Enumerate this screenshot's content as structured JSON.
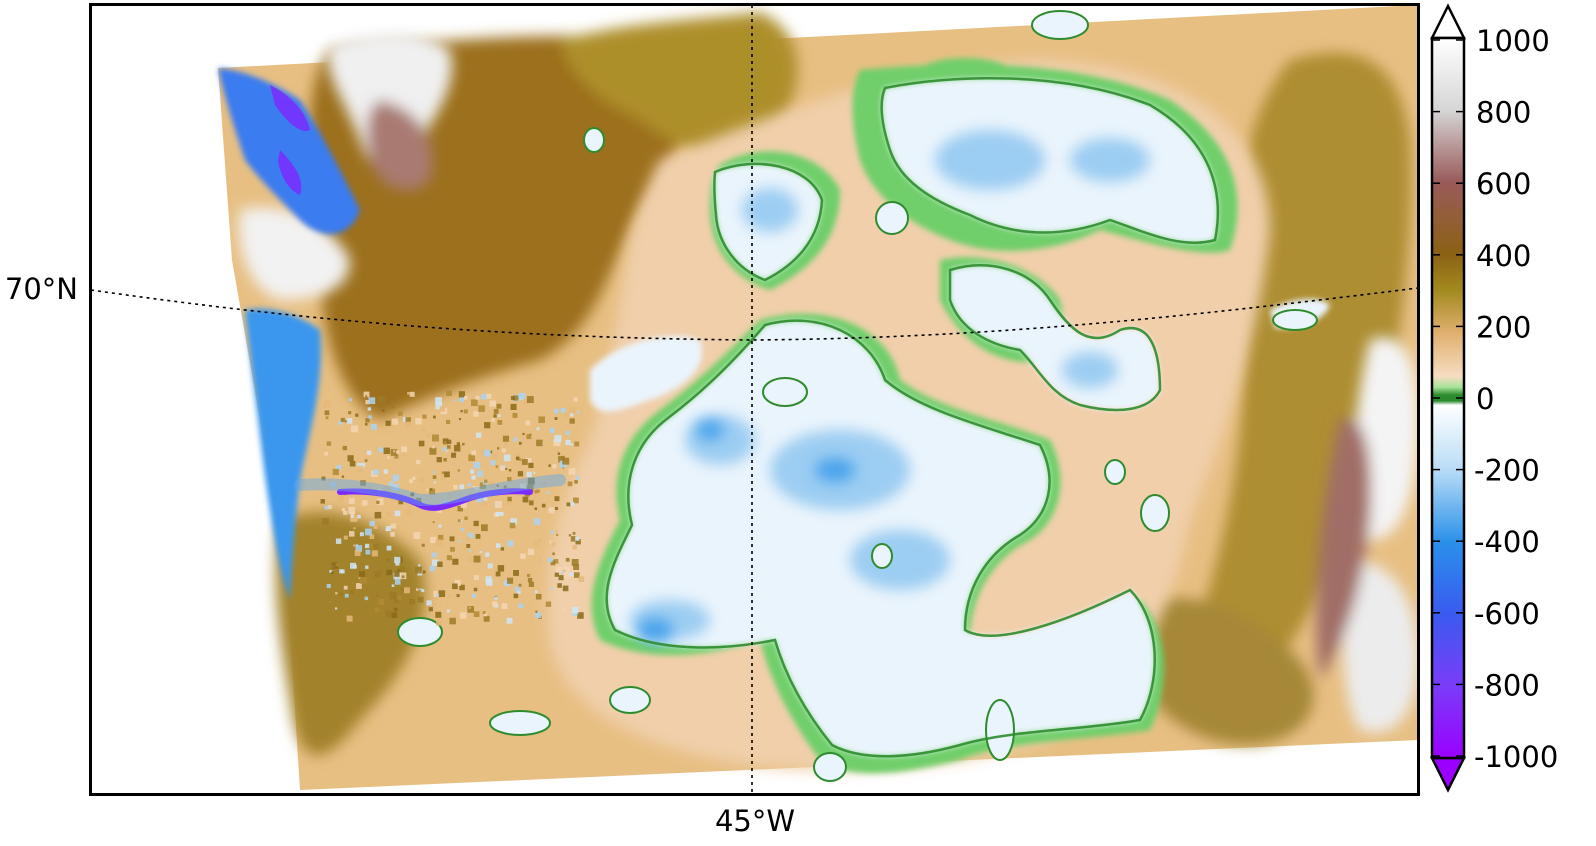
{
  "graticule": {
    "parallel_label": "70°N",
    "meridian_label": "45°W"
  },
  "colorbar": {
    "ticks": [
      "1000",
      "800",
      "600",
      "400",
      "200",
      "0",
      "-200",
      "-400",
      "-600",
      "-800",
      "-1000"
    ],
    "colors": {
      "top": "#ffffff",
      "upper_grey": "#d9d9d9",
      "rose": "#9a5a5a",
      "brown": "#8b6114",
      "olive": "#a28a1e",
      "tan": "#e0b070",
      "sand": "#f6dcc0",
      "green_light": "#a6e39a",
      "green_dark": "#2b8a2b",
      "ice_white": "#eef6ff",
      "light_blue": "#9fd0f4",
      "sky": "#2a90ea",
      "blue": "#3a5af0",
      "violet": "#7a3cf8",
      "bottom": "#9b00ff"
    }
  },
  "map_colors": {
    "background": "#ffffff",
    "brown_highland": "#9c6f1e",
    "olive": "#a88a2a",
    "tan": "#dcb070",
    "sand": "#f3d6b4",
    "ice": "#e8f3fb",
    "ice_blue": "#8cc6ef",
    "deep_blue": "#2f8de9",
    "violet": "#7b2bff",
    "green": "#7fd67a",
    "green_dark": "#2e8c2e",
    "mauve": "#a06e66",
    "snow": "#f4f4f4"
  }
}
